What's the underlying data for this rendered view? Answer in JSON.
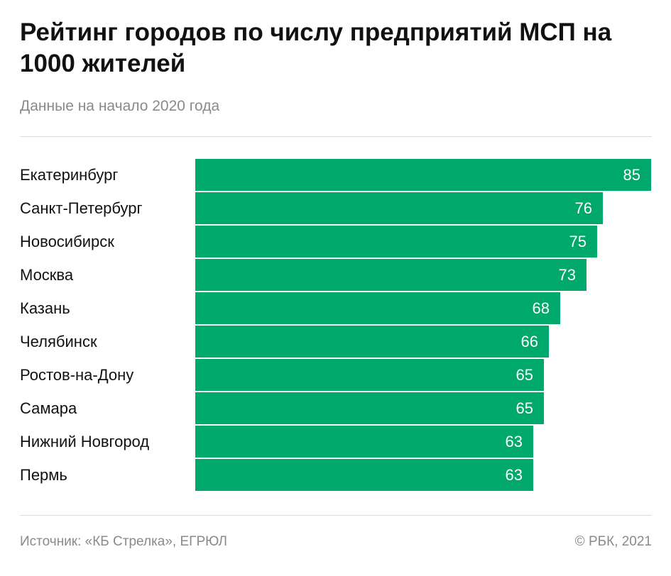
{
  "header": {
    "title": "Рейтинг городов по числу предприятий МСП на 1000 жителей",
    "subtitle": "Данные на начало 2020 года"
  },
  "footer": {
    "source": "Источник:  «КБ Стрелка», ЕГРЮЛ",
    "copyright": "©  РБК, 2021"
  },
  "colors": {
    "bar": "#00a86b"
  },
  "chart_data": {
    "type": "bar",
    "orientation": "horizontal",
    "title": "Рейтинг городов по числу предприятий МСП на 1000 жителей",
    "subtitle": "Данные на начало 2020 года",
    "categories": [
      "Екатеринбург",
      "Санкт-Петербург",
      "Новосибирск",
      "Москва",
      "Казань",
      "Челябинск",
      "Ростов-на-Дону",
      "Самара",
      "Нижний Новгород",
      "Пермь"
    ],
    "values": [
      85,
      76,
      75,
      73,
      68,
      66,
      65,
      65,
      63,
      63
    ],
    "xlim": [
      0,
      85
    ],
    "grid": false,
    "legend": "none"
  }
}
